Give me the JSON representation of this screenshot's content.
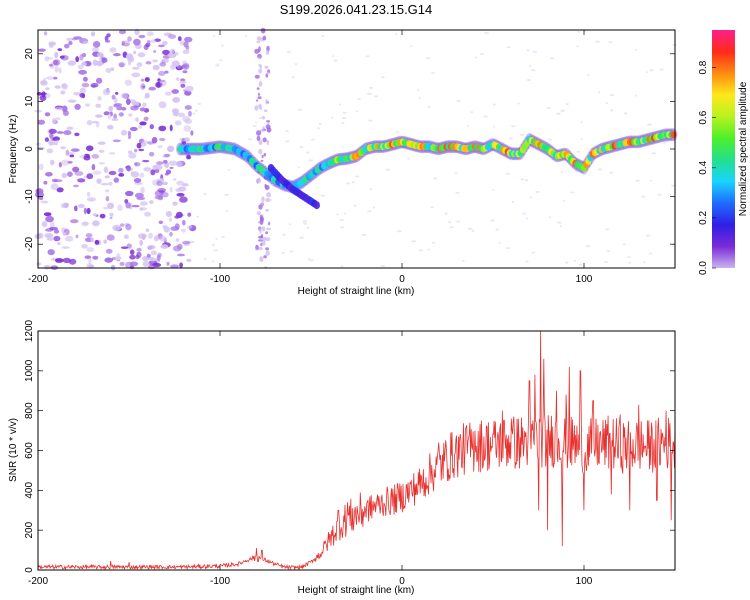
{
  "chart_data": [
    {
      "type": "heatmap",
      "title": "S199.2026.041.23.15.G14",
      "xlabel": "Height of straight line (km)",
      "ylabel": "Frequency (Hz)",
      "xlim": [
        -200,
        150
      ],
      "ylim": [
        -25,
        25
      ],
      "xticks": [
        -200,
        -100,
        0,
        100
      ],
      "yticks": [
        -20,
        -10,
        0,
        10,
        20
      ],
      "colorbar": {
        "label": "Normalized spectral amplitude",
        "range": [
          0,
          0.95
        ],
        "ticks": [
          0.0,
          0.2,
          0.4,
          0.6,
          0.8
        ],
        "colors": [
          "#c8b4f0",
          "#7a2bd6",
          "#2f1fe6",
          "#1f6bff",
          "#19d4ff",
          "#22e08a",
          "#4ff02a",
          "#b8f21d",
          "#ffe81a",
          "#ff8a12",
          "#ff2a1a",
          "#ff1f8c"
        ]
      },
      "noise_region_x": [
        -200,
        -115
      ],
      "ridge": {
        "x": [
          -122,
          -110,
          -100,
          -92,
          -85,
          -80,
          -75,
          -70,
          -65,
          -60,
          -55,
          -50,
          -45,
          -40,
          -35,
          -30,
          -25,
          -20,
          -15,
          -10,
          -5,
          0,
          5,
          10,
          15,
          20,
          25,
          30,
          35,
          40,
          45,
          50,
          55,
          60,
          65,
          70,
          75,
          80,
          85,
          90,
          95,
          100,
          105,
          110,
          115,
          120,
          125,
          130,
          135,
          140,
          145,
          150
        ],
        "y": [
          0,
          0,
          0.5,
          0,
          -1.5,
          -3.5,
          -5,
          -6.5,
          -7.5,
          -8,
          -7,
          -5.5,
          -4,
          -3,
          -2.2,
          -2,
          -1.5,
          0,
          0.5,
          0.5,
          1,
          1.5,
          1,
          0.5,
          0.5,
          0,
          0.5,
          0.5,
          0,
          0.5,
          0,
          1,
          0,
          -1,
          -1,
          2,
          1,
          0,
          -1.5,
          -1,
          -3,
          -4,
          -1,
          0,
          0.5,
          1,
          1.5,
          1.5,
          2,
          2.5,
          3,
          3
        ]
      },
      "secondary_branch": {
        "x": [
          -72,
          -66,
          -60,
          -54,
          -50,
          -46
        ],
        "y": [
          -4,
          -6.5,
          -8.5,
          -10,
          -11,
          -12
        ]
      }
    },
    {
      "type": "line",
      "xlabel": "Height of straight line (km)",
      "ylabel": "SNR (10 * v/v)",
      "xlim": [
        -200,
        150
      ],
      "ylim": [
        0,
        1200
      ],
      "xticks": [
        -200,
        -100,
        0,
        100
      ],
      "yticks": [
        0,
        200,
        400,
        600,
        800,
        1000,
        1200
      ],
      "color": "#e8302e",
      "series": [
        {
          "name": "SNR",
          "x": [
            -200,
            -180,
            -160,
            -140,
            -120,
            -100,
            -90,
            -85,
            -80,
            -75,
            -70,
            -65,
            -60,
            -55,
            -50,
            -45,
            -40,
            -35,
            -30,
            -25,
            -20,
            -15,
            -10,
            -5,
            0,
            5,
            10,
            15,
            20,
            25,
            30,
            35,
            40,
            45,
            50,
            55,
            60,
            65,
            70,
            75,
            80,
            85,
            90,
            95,
            100,
            105,
            110,
            115,
            120,
            125,
            130,
            135,
            140,
            145,
            150
          ],
          "values": [
            15,
            15,
            15,
            15,
            15,
            20,
            30,
            50,
            65,
            50,
            30,
            15,
            12,
            15,
            40,
            80,
            150,
            220,
            260,
            280,
            300,
            320,
            340,
            350,
            370,
            400,
            430,
            480,
            520,
            560,
            590,
            610,
            620,
            630,
            630,
            640,
            640,
            640,
            650,
            660,
            650,
            660,
            640,
            630,
            620,
            630,
            630,
            640,
            620,
            620,
            630,
            620,
            630,
            640,
            630
          ]
        }
      ],
      "spikes": {
        "x": [
          -160,
          -150,
          -80,
          -77,
          -35,
          -30,
          20,
          40,
          55,
          60,
          70,
          73,
          76,
          78,
          80,
          85,
          90,
          92,
          98,
          105,
          120,
          130,
          140,
          145,
          148
        ],
        "y": [
          45,
          40,
          110,
          100,
          300,
          340,
          640,
          700,
          800,
          760,
          950,
          980,
          1200,
          1060,
          1000,
          900,
          880,
          1020,
          1000,
          850,
          780,
          830,
          850,
          800,
          950
        ]
      },
      "dips": {
        "x": [
          75,
          80,
          88,
          100,
          115,
          125,
          140,
          148
        ],
        "y": [
          300,
          200,
          120,
          300,
          380,
          300,
          350,
          250
        ]
      }
    }
  ]
}
